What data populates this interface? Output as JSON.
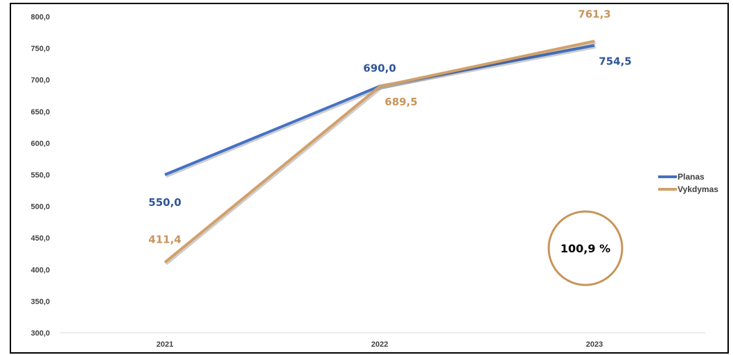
{
  "chart_data": {
    "type": "line",
    "categories": [
      "2021",
      "2022",
      "2023"
    ],
    "ylim": [
      300,
      800
    ],
    "yticks": [
      "800,0",
      "750,0",
      "700,0",
      "650,0",
      "600,0",
      "550,0",
      "500,0",
      "450,0",
      "400,0",
      "350,0",
      "300,0"
    ],
    "ytick_values": [
      800,
      750,
      700,
      650,
      600,
      550,
      500,
      450,
      400,
      350,
      300
    ],
    "grid": false,
    "legend_placement": "right",
    "series": [
      {
        "name": "Planas",
        "values": [
          550.0,
          690.0,
          754.5
        ],
        "labels": [
          "550,0",
          "690,0",
          "754,5"
        ],
        "color": "#4472c4",
        "label_color": "#2f5597"
      },
      {
        "name": "Vykdymas",
        "values": [
          411.4,
          689.5,
          761.3
        ],
        "labels": [
          "411,4",
          "689,5",
          "761,3"
        ],
        "color": "#d2a06a",
        "label_color": "#c8945a"
      }
    ],
    "badge": {
      "text": "100,9 %",
      "color": "#c8945a"
    }
  }
}
